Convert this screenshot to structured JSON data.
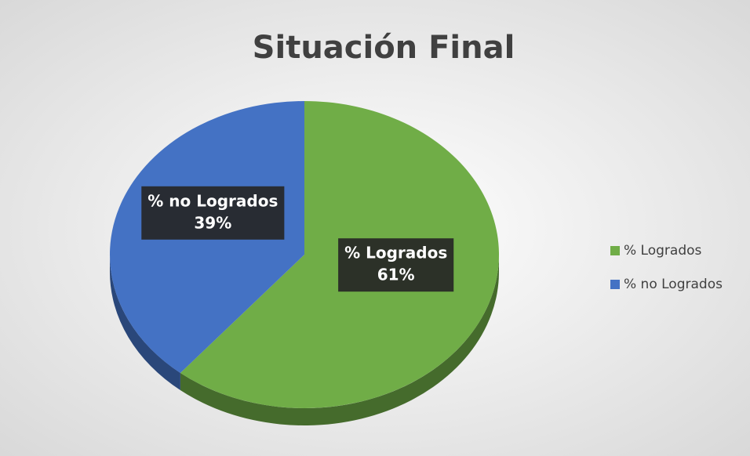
{
  "chart_data": {
    "type": "pie",
    "title": "Situación Final",
    "categories": [
      "% Logrados",
      "% no Logrados"
    ],
    "values": [
      61,
      39
    ],
    "value_labels": [
      "61%",
      "39%"
    ],
    "colors": [
      "#70ad47",
      "#4472c4"
    ],
    "legend": "right"
  }
}
